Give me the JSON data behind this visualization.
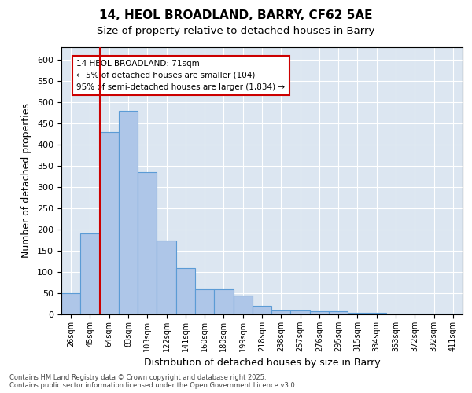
{
  "title1": "14, HEOL BROADLAND, BARRY, CF62 5AE",
  "title2": "Size of property relative to detached houses in Barry",
  "xlabel": "Distribution of detached houses by size in Barry",
  "ylabel": "Number of detached properties",
  "categories": [
    "26sqm",
    "45sqm",
    "64sqm",
    "83sqm",
    "103sqm",
    "122sqm",
    "141sqm",
    "160sqm",
    "180sqm",
    "199sqm",
    "218sqm",
    "238sqm",
    "257sqm",
    "276sqm",
    "295sqm",
    "315sqm",
    "334sqm",
    "353sqm",
    "372sqm",
    "392sqm",
    "411sqm"
  ],
  "values": [
    50,
    190,
    430,
    480,
    335,
    175,
    110,
    60,
    60,
    45,
    20,
    10,
    10,
    7,
    7,
    3,
    3,
    2,
    1,
    1,
    1
  ],
  "bar_color": "#aec6e8",
  "bar_edge_color": "#5b9bd5",
  "background_color": "#dce6f1",
  "grid_color": "#ffffff",
  "annotation_title": "14 HEOL BROADLAND: 71sqm",
  "annotation_line1": "← 5% of detached houses are smaller (104)",
  "annotation_line2": "95% of semi-detached houses are larger (1,834) →",
  "annotation_box_color": "#ffffff",
  "annotation_box_edge": "#cc0000",
  "footer": "Contains HM Land Registry data © Crown copyright and database right 2025.\nContains public sector information licensed under the Open Government Licence v3.0.",
  "ylim": [
    0,
    630
  ],
  "yticks": [
    0,
    50,
    100,
    150,
    200,
    250,
    300,
    350,
    400,
    450,
    500,
    550,
    600
  ],
  "red_line_x": 1.5
}
